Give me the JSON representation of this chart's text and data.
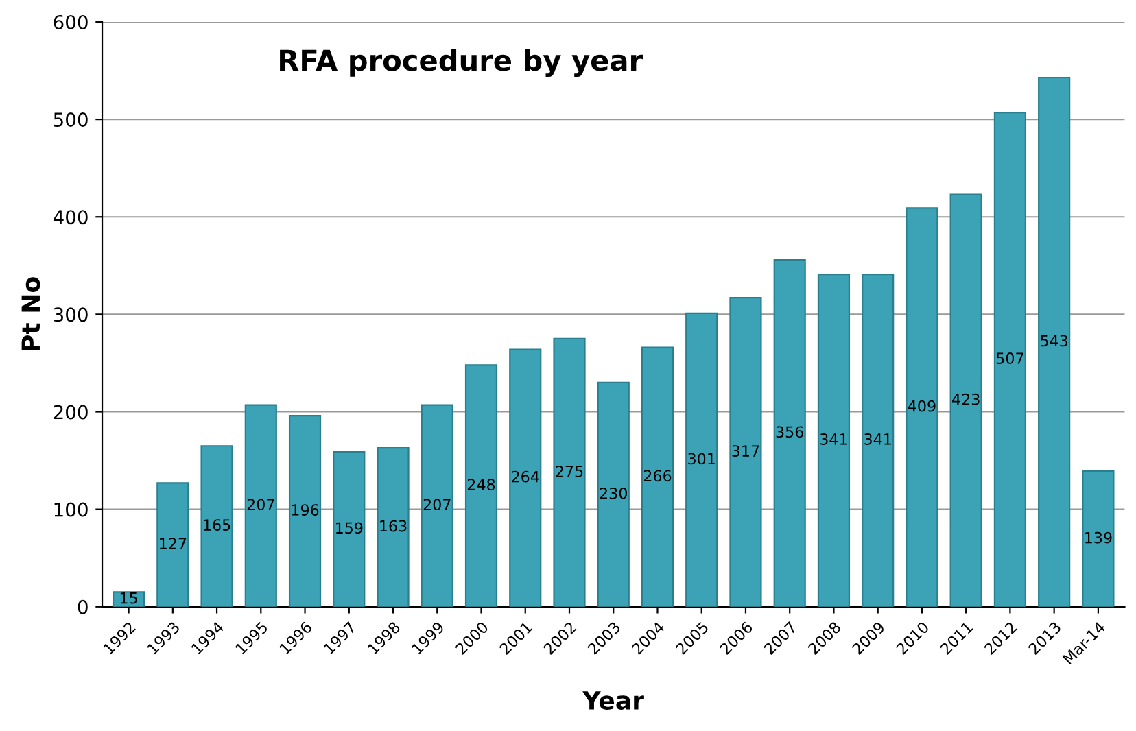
{
  "chart_data": {
    "type": "bar",
    "title": "RFA procedure by year",
    "xlabel": "Year",
    "ylabel": "Pt No",
    "categories": [
      "1992",
      "1993",
      "1994",
      "1995",
      "1996",
      "1997",
      "1998",
      "1999",
      "2000",
      "2001",
      "2002",
      "2003",
      "2004",
      "2005",
      "2006",
      "2007",
      "2008",
      "2009",
      "2010",
      "2011",
      "2012",
      "2013",
      "Mar-14"
    ],
    "values": [
      15,
      127,
      165,
      207,
      196,
      159,
      163,
      207,
      248,
      264,
      275,
      230,
      266,
      301,
      317,
      356,
      341,
      341,
      409,
      423,
      507,
      543,
      139
    ],
    "color": "#3ba3b5",
    "ylim": [
      0,
      600
    ],
    "yticks": [
      0,
      100,
      200,
      300,
      400,
      500,
      600
    ],
    "grid": "y",
    "data_labels": true
  }
}
